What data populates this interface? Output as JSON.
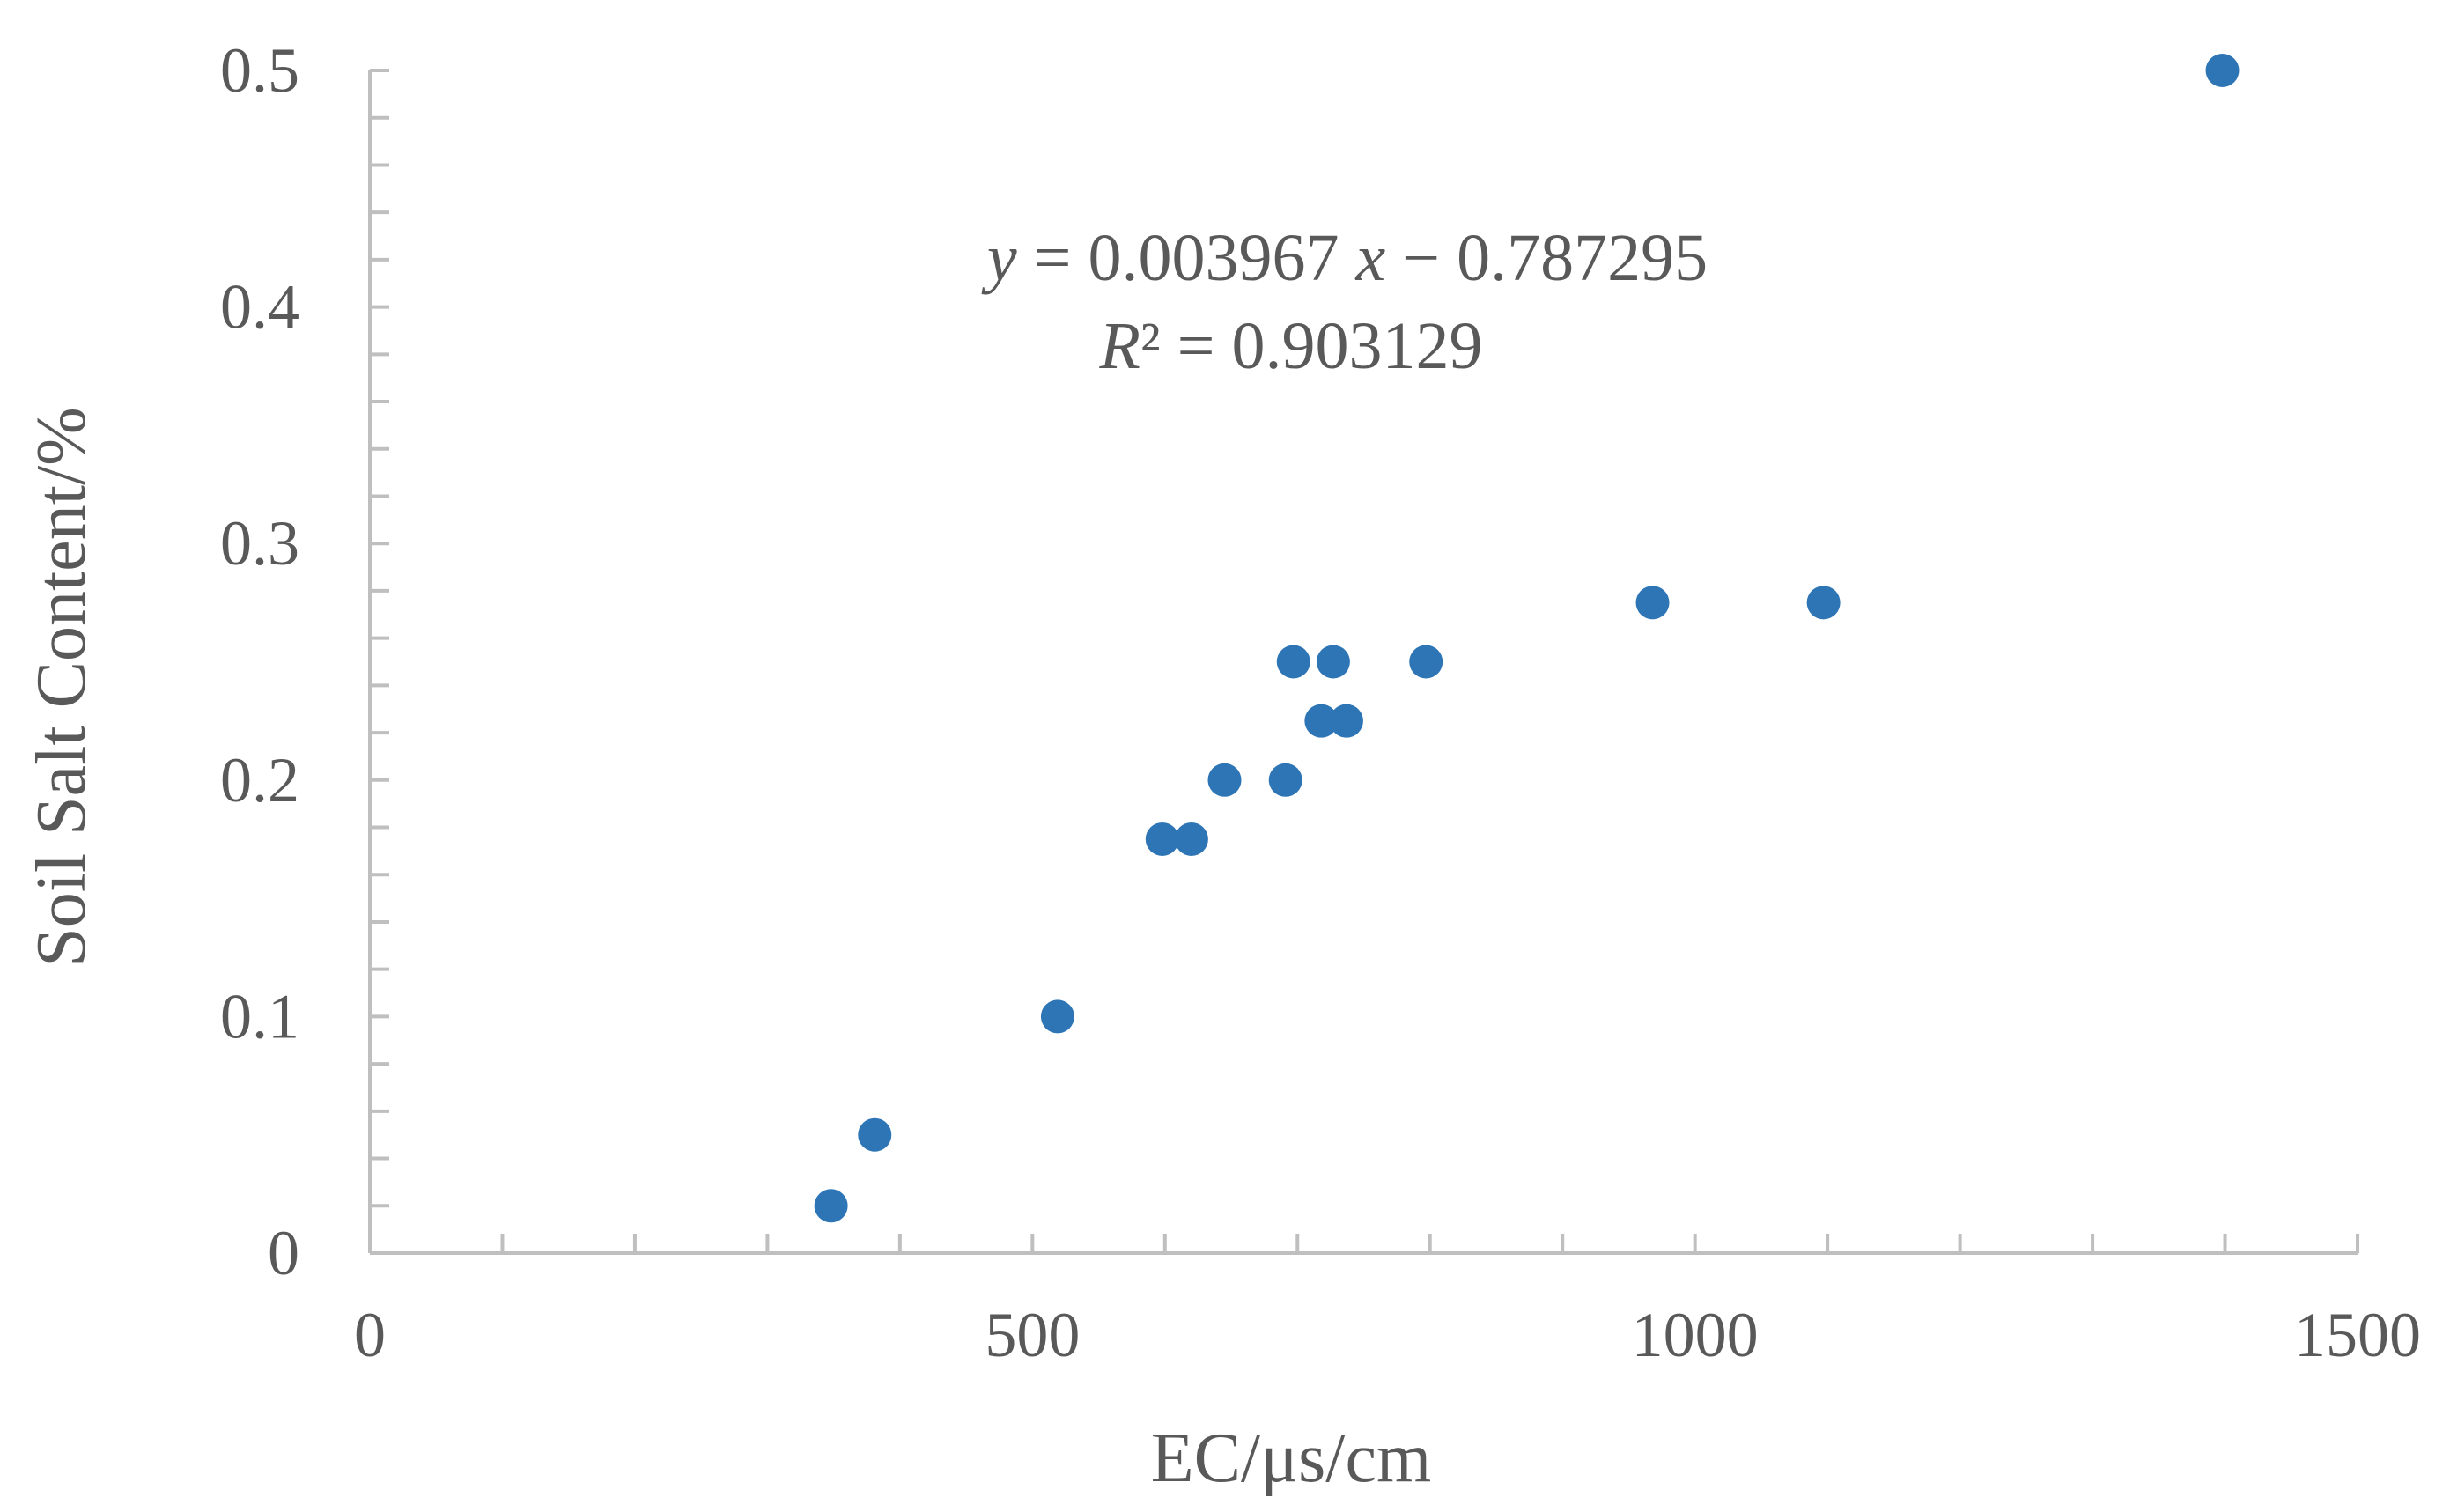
{
  "chart_data": {
    "type": "scatter",
    "xlabel": "EC/μs/cm",
    "ylabel": "Soil Salt Content/%",
    "xlim": [
      0,
      1500
    ],
    "ylim": [
      0,
      0.5
    ],
    "x_ticks": [
      "0",
      "500",
      "1000",
      "1500"
    ],
    "y_ticks": [
      "0",
      "0.1",
      "0.2",
      "0.3",
      "0.4",
      "0.5"
    ],
    "grid": false,
    "series": [
      {
        "color": "#2E75B6",
        "points": [
          {
            "x": 348,
            "y": 0.02
          },
          {
            "x": 381,
            "y": 0.05
          },
          {
            "x": 519,
            "y": 0.1
          },
          {
            "x": 598,
            "y": 0.175
          },
          {
            "x": 620,
            "y": 0.175
          },
          {
            "x": 645,
            "y": 0.2
          },
          {
            "x": 691,
            "y": 0.2
          },
          {
            "x": 697,
            "y": 0.25
          },
          {
            "x": 727,
            "y": 0.25
          },
          {
            "x": 718,
            "y": 0.225
          },
          {
            "x": 737,
            "y": 0.225
          },
          {
            "x": 797,
            "y": 0.25
          },
          {
            "x": 968,
            "y": 0.275
          },
          {
            "x": 1097,
            "y": 0.275
          },
          {
            "x": 1398,
            "y": 0.5
          }
        ]
      }
    ],
    "trendline": {
      "style": "dotted",
      "color": "#2E75B6",
      "slope": 0.003967,
      "intercept": -0.787295,
      "x_range": [
        348,
        1398
      ]
    },
    "annotations": {
      "eq_y": "y",
      "eq_mid": " = 0.003967 ",
      "eq_x": "x",
      "eq_tail": " − 0.787295",
      "r2_r": "R",
      "r2_rest": "² = 0.903129"
    }
  }
}
